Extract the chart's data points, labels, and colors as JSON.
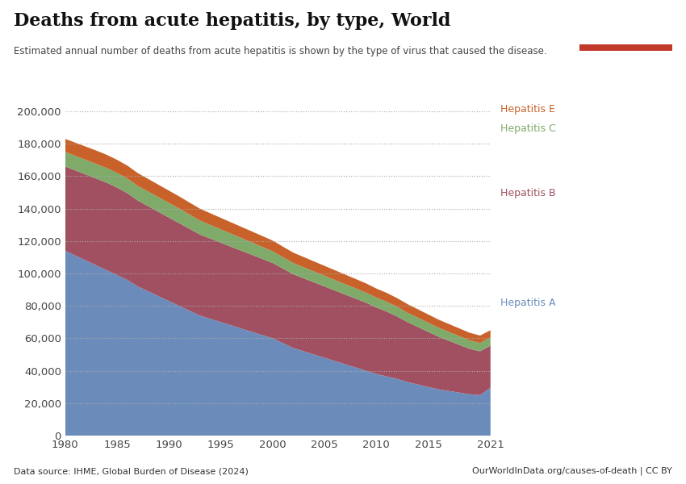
{
  "title": "Deaths from acute hepatitis, by type, World",
  "subtitle": "Estimated annual number of deaths from acute hepatitis is shown by the type of virus that caused the disease.",
  "source_left": "Data source: IHME, Global Burden of Disease (2024)",
  "source_right": "OurWorldInData.org/causes-of-death | CC BY",
  "years": [
    1980,
    1981,
    1982,
    1983,
    1984,
    1985,
    1986,
    1987,
    1988,
    1989,
    1990,
    1991,
    1992,
    1993,
    1994,
    1995,
    1996,
    1997,
    1998,
    1999,
    2000,
    2001,
    2002,
    2003,
    2004,
    2005,
    2006,
    2007,
    2008,
    2009,
    2010,
    2011,
    2012,
    2013,
    2014,
    2015,
    2016,
    2017,
    2018,
    2019,
    2020,
    2021
  ],
  "hep_a": [
    114000,
    111000,
    108000,
    105000,
    102000,
    99000,
    96000,
    92000,
    89000,
    86000,
    83000,
    80000,
    77000,
    74000,
    72000,
    70000,
    68000,
    66000,
    64000,
    62000,
    60000,
    57000,
    54000,
    52000,
    50000,
    48000,
    46000,
    44000,
    42000,
    40000,
    38000,
    36500,
    35000,
    33000,
    31500,
    30000,
    28500,
    27500,
    26500,
    25500,
    25000,
    29500
  ],
  "hep_b": [
    52000,
    52500,
    53000,
    53500,
    54000,
    54000,
    53500,
    53000,
    52500,
    52000,
    51500,
    51000,
    50500,
    50000,
    49500,
    49000,
    48500,
    48000,
    47500,
    47000,
    46500,
    46000,
    45500,
    45000,
    44500,
    44000,
    43500,
    43000,
    42500,
    42000,
    41000,
    40000,
    38500,
    37000,
    35500,
    34000,
    32500,
    31000,
    29500,
    28000,
    27000,
    26000
  ],
  "hep_c": [
    9000,
    9000,
    9000,
    9000,
    9000,
    9000,
    9000,
    9000,
    9000,
    9000,
    9000,
    9000,
    8800,
    8600,
    8400,
    8200,
    8000,
    7800,
    7600,
    7400,
    7200,
    7000,
    6900,
    6800,
    6700,
    6600,
    6500,
    6400,
    6300,
    6200,
    6100,
    6000,
    5900,
    5800,
    5700,
    5600,
    5500,
    5400,
    5300,
    5200,
    5100,
    5000
  ],
  "hep_e": [
    8000,
    8100,
    8200,
    8300,
    8200,
    8100,
    8000,
    7900,
    7800,
    7700,
    7600,
    7500,
    7400,
    7300,
    7200,
    7100,
    7000,
    6900,
    6800,
    6700,
    6600,
    6500,
    6400,
    6300,
    6200,
    6100,
    6000,
    5900,
    5800,
    5700,
    5600,
    5500,
    5400,
    5300,
    5200,
    5100,
    5000,
    4900,
    4800,
    4700,
    4600,
    4500
  ],
  "color_hep_a": "#6b8cba",
  "color_hep_b": "#a05060",
  "color_hep_c": "#7faa6a",
  "color_hep_e": "#c8622a",
  "ylim": [
    0,
    200000
  ],
  "yticks": [
    0,
    20000,
    40000,
    60000,
    80000,
    100000,
    120000,
    140000,
    160000,
    180000,
    200000
  ],
  "background_color": "#ffffff",
  "logo_bg": "#1a3050",
  "logo_red": "#c0392b"
}
